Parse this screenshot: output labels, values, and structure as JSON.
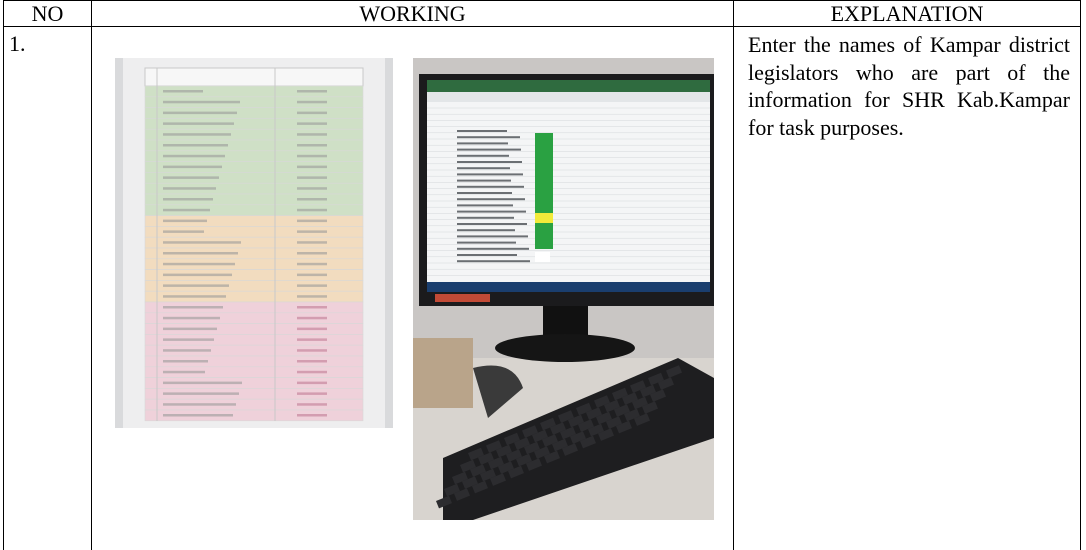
{
  "table": {
    "header": [
      "NO",
      "WORKING",
      "EXPLANATION"
    ],
    "rows": [
      {
        "no": "1.",
        "explanation": "Enter the names of Kampar district legislators who are part of the information for SHR Kab.Kampar for task purposes."
      }
    ]
  }
}
